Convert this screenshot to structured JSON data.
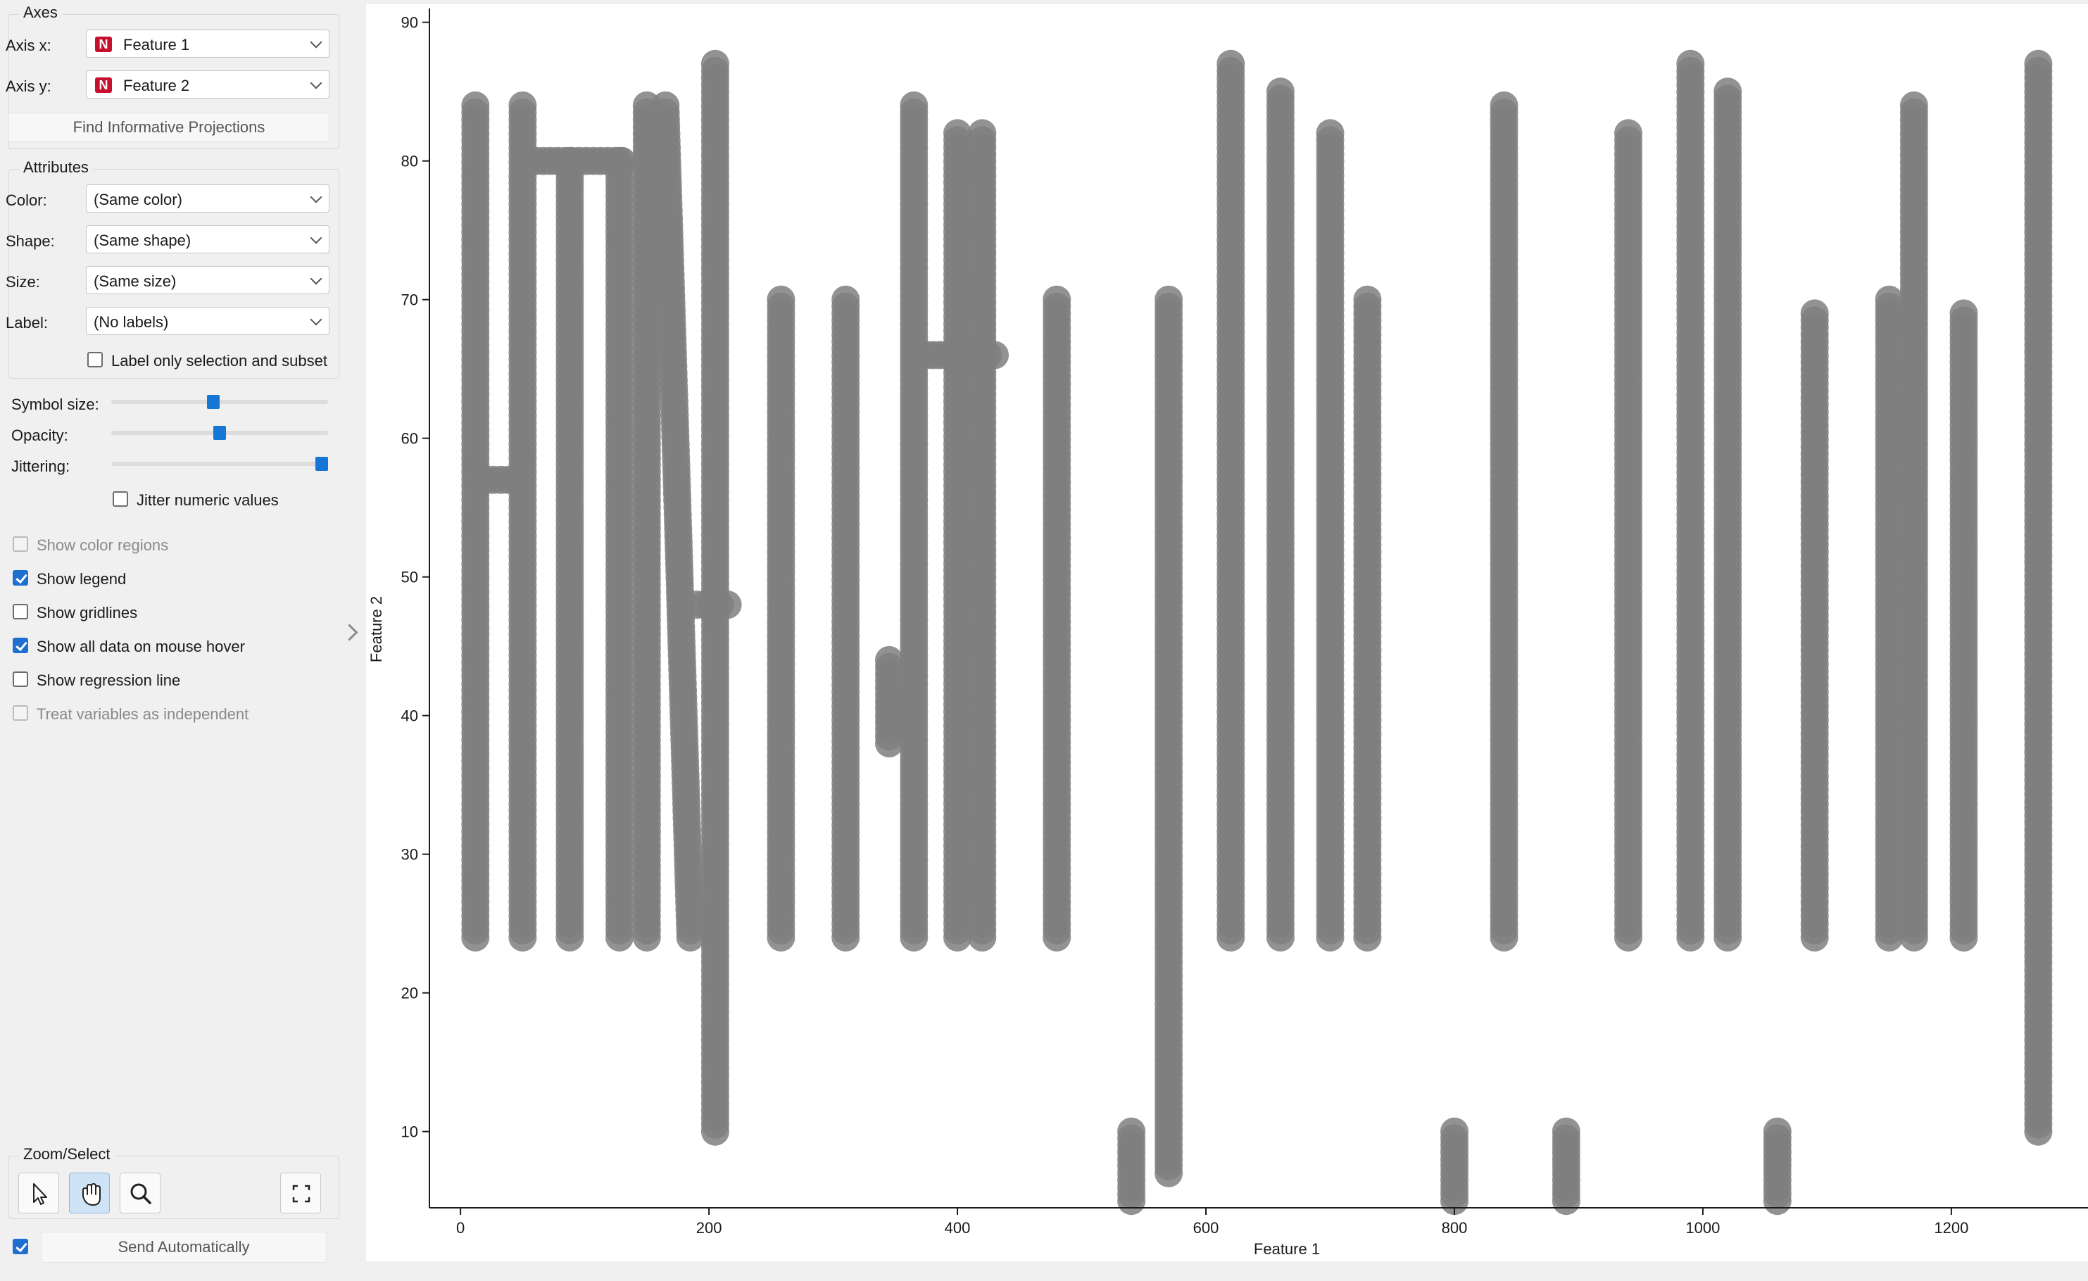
{
  "sidebar": {
    "axes": {
      "title": "Axes",
      "axis_x_label": "Axis x:",
      "axis_x_value": "Feature 1",
      "axis_y_label": "Axis y:",
      "axis_y_value": "Feature 2",
      "var_type_icon": "N",
      "find_projections_label": "Find Informative Projections"
    },
    "attributes": {
      "title": "Attributes",
      "color_label": "Color:",
      "color_value": "(Same color)",
      "shape_label": "Shape:",
      "shape_value": "(Same shape)",
      "size_label": "Size:",
      "size_value": "(Same size)",
      "label_label": "Label:",
      "label_value": "(No labels)",
      "label_only_selection": "Label only selection and subset",
      "label_only_selection_checked": false
    },
    "sliders": {
      "symbol_size_label": "Symbol size:",
      "symbol_size_fraction": 0.47,
      "opacity_label": "Opacity:",
      "opacity_fraction": 0.5,
      "jittering_label": "Jittering:",
      "jittering_fraction": 1.0,
      "jitter_numeric_label": "Jitter numeric values",
      "jitter_numeric_checked": false
    },
    "options": [
      {
        "label": "Show color regions",
        "checked": false,
        "disabled": true
      },
      {
        "label": "Show legend",
        "checked": true,
        "disabled": false
      },
      {
        "label": "Show gridlines",
        "checked": false,
        "disabled": false
      },
      {
        "label": "Show all data on mouse hover",
        "checked": true,
        "disabled": false
      },
      {
        "label": "Show regression line",
        "checked": false,
        "disabled": false
      },
      {
        "label": "Treat variables as independent",
        "checked": false,
        "disabled": true
      }
    ],
    "zoom_select": {
      "title": "Zoom/Select",
      "tools": [
        "pointer-select",
        "pan-hand",
        "zoom-magnifier"
      ],
      "active_tool": "pan-hand",
      "reset_tool": "fit-screen"
    },
    "send_automatically_label": "Send Automatically",
    "send_automatically_checked": true
  },
  "colors": {
    "point": "#7f7f7f",
    "accent": "#1576d6",
    "var_icon": "#c8102e"
  },
  "chart_data": {
    "type": "scatter",
    "xlabel": "Feature 1",
    "ylabel": "Feature 2",
    "xlim": [
      -25,
      1310
    ],
    "ylim": [
      4.5,
      91
    ],
    "xticks": [
      0,
      200,
      400,
      600,
      800,
      1000,
      1200
    ],
    "yticks": [
      10,
      20,
      30,
      40,
      50,
      60,
      70,
      80,
      90
    ],
    "grid": false,
    "point_color": "#7f7f7f",
    "point_opacity": 0.85,
    "description_of_points": "dense stroke-like clusters of uniform gray points",
    "strokes": [
      {
        "x": [
          12,
          12
        ],
        "y": [
          24,
          84
        ]
      },
      {
        "x": [
          20,
          45
        ],
        "y": [
          57,
          57
        ]
      },
      {
        "x": [
          50,
          50
        ],
        "y": [
          24,
          84
        ]
      },
      {
        "x": [
          55,
          130
        ],
        "y": [
          80,
          80
        ]
      },
      {
        "x": [
          88,
          88
        ],
        "y": [
          24,
          80
        ]
      },
      {
        "x": [
          128,
          128
        ],
        "y": [
          24,
          80
        ]
      },
      {
        "x": [
          150,
          150
        ],
        "y": [
          24,
          84
        ]
      },
      {
        "x": [
          165,
          185
        ],
        "y": [
          84,
          24
        ]
      },
      {
        "x": [
          205,
          205
        ],
        "y": [
          10,
          87
        ]
      },
      {
        "x": [
          190,
          215
        ],
        "y": [
          48,
          48
        ]
      },
      {
        "x": [
          258,
          258
        ],
        "y": [
          24,
          70
        ]
      },
      {
        "x": [
          310,
          310
        ],
        "y": [
          24,
          70
        ]
      },
      {
        "x": [
          345,
          345
        ],
        "y": [
          38,
          44
        ]
      },
      {
        "x": [
          365,
          365
        ],
        "y": [
          24,
          84
        ]
      },
      {
        "x": [
          400,
          400
        ],
        "y": [
          24,
          82
        ]
      },
      {
        "x": [
          375,
          430
        ],
        "y": [
          66,
          66
        ]
      },
      {
        "x": [
          420,
          420
        ],
        "y": [
          24,
          82
        ]
      },
      {
        "x": [
          480,
          480
        ],
        "y": [
          24,
          70
        ]
      },
      {
        "x": [
          540,
          540
        ],
        "y": [
          5,
          10
        ]
      },
      {
        "x": [
          570,
          570
        ],
        "y": [
          7,
          70
        ]
      },
      {
        "x": [
          620,
          620
        ],
        "y": [
          24,
          87
        ]
      },
      {
        "x": [
          660,
          660
        ],
        "y": [
          24,
          85
        ]
      },
      {
        "x": [
          700,
          700
        ],
        "y": [
          24,
          82
        ]
      },
      {
        "x": [
          730,
          730
        ],
        "y": [
          24,
          70
        ]
      },
      {
        "x": [
          800,
          800
        ],
        "y": [
          5,
          10
        ]
      },
      {
        "x": [
          840,
          840
        ],
        "y": [
          24,
          84
        ]
      },
      {
        "x": [
          890,
          890
        ],
        "y": [
          5,
          10
        ]
      },
      {
        "x": [
          940,
          940
        ],
        "y": [
          24,
          82
        ]
      },
      {
        "x": [
          990,
          990
        ],
        "y": [
          24,
          87
        ]
      },
      {
        "x": [
          1020,
          1020
        ],
        "y": [
          24,
          85
        ]
      },
      {
        "x": [
          1060,
          1060
        ],
        "y": [
          5,
          10
        ]
      },
      {
        "x": [
          1090,
          1090
        ],
        "y": [
          24,
          69
        ]
      },
      {
        "x": [
          1150,
          1150
        ],
        "y": [
          24,
          70
        ]
      },
      {
        "x": [
          1170,
          1170
        ],
        "y": [
          24,
          84
        ]
      },
      {
        "x": [
          1210,
          1210
        ],
        "y": [
          24,
          69
        ]
      },
      {
        "x": [
          1270,
          1270
        ],
        "y": [
          10,
          87
        ]
      }
    ]
  }
}
